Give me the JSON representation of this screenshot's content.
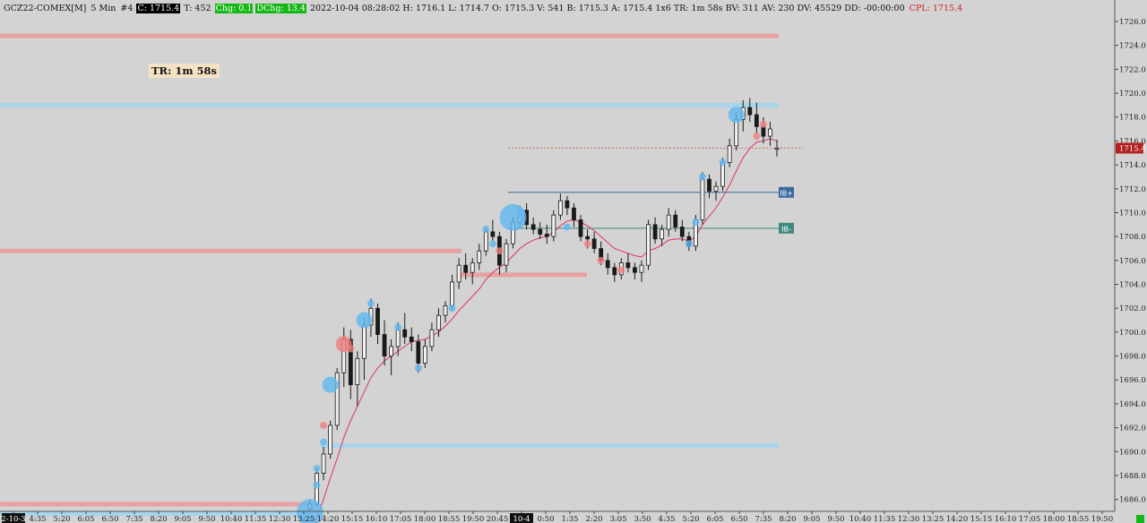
{
  "header": {
    "symbol": "GCZ22-COMEX[M]",
    "interval": "5 Min",
    "chart_number": "#4",
    "close": "C: 1715.4",
    "trades": "T: 452",
    "change": "Chg: 0.1",
    "dchange": "DChg: 13.4",
    "stats": "2022-10-04 08:28:02 H: 1716.1 L: 1714.7 O: 1715.3 V: 541 B: 1715.3 A: 1715.4 1x6 TR: 1m 58s BV: 311 AV: 230 DV: 45529 DD: -00:00:00",
    "cpl": "CPL: 1715.4"
  },
  "timer_box": "TR: 1m 58s",
  "chart_data": {
    "type": "candlestick",
    "y_axis": {
      "range": [
        1685.0,
        1727.8
      ],
      "ticks": [
        1686.0,
        1688.0,
        1690.0,
        1692.0,
        1694.0,
        1696.0,
        1698.0,
        1700.0,
        1702.0,
        1704.0,
        1706.0,
        1708.0,
        1710.0,
        1712.0,
        1714.0,
        1716.0,
        1718.0,
        1720.0,
        1722.0,
        1724.0,
        1726.0
      ],
      "tick_labels": [
        "1686.0",
        "1688.0",
        "1690.0",
        "1692.0",
        "1694.0",
        "1696.0",
        "1698.0",
        "1700.0",
        "1702.0",
        "1704.0",
        "1706.0",
        "1708.0",
        "1710.0",
        "1712.0",
        "1714.0",
        "1716.0",
        "1718.0",
        "1720.0",
        "1722.0",
        "1724.0",
        "1726.0"
      ],
      "current_price_label": "1715.4",
      "current_price_color": "#b52020"
    },
    "x_axis": {
      "labels": [
        "2-10-3",
        "4:35",
        "5:20",
        "6:05",
        "6:50",
        "7:35",
        "8:20",
        "9:05",
        "9:50",
        "10:40",
        "11:35",
        "12:30",
        "13:25",
        "14:20",
        "15:15",
        "16:10",
        "17:05",
        "18:00",
        "18:55",
        "19:50",
        "20:45",
        "10-4",
        "0:50",
        "1:35",
        "2:20",
        "3:05",
        "3:50",
        "4:35",
        "5:20",
        "6:05",
        "6:50",
        "7:35",
        "8:20",
        "9:05",
        "9:50",
        "10:40",
        "11:35",
        "12:30",
        "13:25",
        "14:20",
        "15:15",
        "16:10",
        "17:05",
        "18:00",
        "18:55",
        "19:50"
      ],
      "highlighted_labels": [
        "2-10-3",
        "10-4"
      ]
    },
    "candles": [
      {
        "o": 1685.2,
        "h": 1686.0,
        "l": 1685.0,
        "c": 1685.6
      },
      {
        "o": 1685.6,
        "h": 1688.6,
        "l": 1685.4,
        "c": 1688.2
      },
      {
        "o": 1688.2,
        "h": 1690.4,
        "l": 1687.6,
        "c": 1689.8
      },
      {
        "o": 1689.8,
        "h": 1692.6,
        "l": 1689.4,
        "c": 1692.2
      },
      {
        "o": 1692.2,
        "h": 1697.0,
        "l": 1691.8,
        "c": 1696.6
      },
      {
        "o": 1696.6,
        "h": 1700.4,
        "l": 1695.4,
        "c": 1699.4
      },
      {
        "o": 1699.4,
        "h": 1700.2,
        "l": 1694.4,
        "c": 1695.6
      },
      {
        "o": 1695.6,
        "h": 1698.4,
        "l": 1693.8,
        "c": 1697.8
      },
      {
        "o": 1697.8,
        "h": 1701.2,
        "l": 1696.0,
        "c": 1700.6
      },
      {
        "o": 1700.6,
        "h": 1702.8,
        "l": 1699.6,
        "c": 1702.0
      },
      {
        "o": 1702.0,
        "h": 1702.4,
        "l": 1699.0,
        "c": 1699.8
      },
      {
        "o": 1699.8,
        "h": 1701.0,
        "l": 1697.2,
        "c": 1698.0
      },
      {
        "o": 1698.0,
        "h": 1699.4,
        "l": 1696.4,
        "c": 1698.8
      },
      {
        "o": 1698.8,
        "h": 1700.8,
        "l": 1698.0,
        "c": 1700.2
      },
      {
        "o": 1700.2,
        "h": 1701.6,
        "l": 1699.0,
        "c": 1699.6
      },
      {
        "o": 1699.6,
        "h": 1700.4,
        "l": 1698.4,
        "c": 1699.2
      },
      {
        "o": 1699.2,
        "h": 1699.8,
        "l": 1696.6,
        "c": 1697.4
      },
      {
        "o": 1697.4,
        "h": 1699.4,
        "l": 1697.0,
        "c": 1698.8
      },
      {
        "o": 1698.8,
        "h": 1700.8,
        "l": 1698.4,
        "c": 1700.2
      },
      {
        "o": 1700.2,
        "h": 1702.0,
        "l": 1699.6,
        "c": 1701.4
      },
      {
        "o": 1701.4,
        "h": 1702.6,
        "l": 1700.8,
        "c": 1702.2
      },
      {
        "o": 1702.2,
        "h": 1704.8,
        "l": 1701.8,
        "c": 1704.2
      },
      {
        "o": 1704.2,
        "h": 1706.2,
        "l": 1703.6,
        "c": 1705.6
      },
      {
        "o": 1705.6,
        "h": 1706.6,
        "l": 1704.4,
        "c": 1705.0
      },
      {
        "o": 1705.0,
        "h": 1706.2,
        "l": 1704.0,
        "c": 1705.8
      },
      {
        "o": 1705.8,
        "h": 1707.4,
        "l": 1705.2,
        "c": 1706.8
      },
      {
        "o": 1706.8,
        "h": 1708.8,
        "l": 1706.4,
        "c": 1708.4
      },
      {
        "o": 1708.4,
        "h": 1709.4,
        "l": 1707.6,
        "c": 1708.0
      },
      {
        "o": 1708.0,
        "h": 1708.4,
        "l": 1704.8,
        "c": 1705.6
      },
      {
        "o": 1705.6,
        "h": 1707.8,
        "l": 1705.0,
        "c": 1707.4
      },
      {
        "o": 1707.4,
        "h": 1709.6,
        "l": 1707.0,
        "c": 1709.2
      },
      {
        "o": 1709.2,
        "h": 1710.6,
        "l": 1708.8,
        "c": 1710.2
      },
      {
        "o": 1710.2,
        "h": 1710.8,
        "l": 1708.6,
        "c": 1709.0
      },
      {
        "o": 1709.0,
        "h": 1709.6,
        "l": 1708.2,
        "c": 1708.6
      },
      {
        "o": 1708.6,
        "h": 1709.2,
        "l": 1707.8,
        "c": 1708.2
      },
      {
        "o": 1708.2,
        "h": 1709.0,
        "l": 1707.4,
        "c": 1708.0
      },
      {
        "o": 1708.0,
        "h": 1710.2,
        "l": 1707.6,
        "c": 1709.8
      },
      {
        "o": 1709.8,
        "h": 1711.6,
        "l": 1709.4,
        "c": 1711.0
      },
      {
        "o": 1711.0,
        "h": 1711.4,
        "l": 1709.8,
        "c": 1710.4
      },
      {
        "o": 1710.4,
        "h": 1710.8,
        "l": 1708.8,
        "c": 1709.4
      },
      {
        "o": 1709.4,
        "h": 1709.8,
        "l": 1707.6,
        "c": 1708.0
      },
      {
        "o": 1708.0,
        "h": 1708.6,
        "l": 1707.0,
        "c": 1707.8
      },
      {
        "o": 1707.8,
        "h": 1708.4,
        "l": 1706.6,
        "c": 1707.0
      },
      {
        "o": 1707.0,
        "h": 1707.6,
        "l": 1705.6,
        "c": 1706.0
      },
      {
        "o": 1706.0,
        "h": 1706.6,
        "l": 1704.8,
        "c": 1705.4
      },
      {
        "o": 1705.4,
        "h": 1705.8,
        "l": 1704.2,
        "c": 1704.8
      },
      {
        "o": 1704.8,
        "h": 1706.2,
        "l": 1704.4,
        "c": 1705.8
      },
      {
        "o": 1705.8,
        "h": 1706.6,
        "l": 1705.0,
        "c": 1705.4
      },
      {
        "o": 1705.4,
        "h": 1705.8,
        "l": 1704.4,
        "c": 1705.0
      },
      {
        "o": 1705.0,
        "h": 1706.0,
        "l": 1704.2,
        "c": 1705.6
      },
      {
        "o": 1705.6,
        "h": 1709.4,
        "l": 1705.2,
        "c": 1709.0
      },
      {
        "o": 1709.0,
        "h": 1709.6,
        "l": 1707.4,
        "c": 1707.8
      },
      {
        "o": 1707.8,
        "h": 1709.0,
        "l": 1707.2,
        "c": 1708.6
      },
      {
        "o": 1708.6,
        "h": 1710.4,
        "l": 1708.0,
        "c": 1709.8
      },
      {
        "o": 1709.8,
        "h": 1710.2,
        "l": 1708.4,
        "c": 1708.8
      },
      {
        "o": 1708.8,
        "h": 1709.4,
        "l": 1707.6,
        "c": 1708.0
      },
      {
        "o": 1708.0,
        "h": 1708.4,
        "l": 1706.8,
        "c": 1707.2
      },
      {
        "o": 1707.2,
        "h": 1709.8,
        "l": 1706.8,
        "c": 1709.4
      },
      {
        "o": 1709.4,
        "h": 1713.4,
        "l": 1709.0,
        "c": 1712.8
      },
      {
        "o": 1712.8,
        "h": 1713.2,
        "l": 1711.2,
        "c": 1711.8
      },
      {
        "o": 1711.8,
        "h": 1712.6,
        "l": 1711.0,
        "c": 1712.2
      },
      {
        "o": 1712.2,
        "h": 1714.6,
        "l": 1711.8,
        "c": 1714.2
      },
      {
        "o": 1714.2,
        "h": 1716.2,
        "l": 1713.8,
        "c": 1715.6
      },
      {
        "o": 1715.6,
        "h": 1718.4,
        "l": 1715.2,
        "c": 1717.8
      },
      {
        "o": 1717.8,
        "h": 1719.4,
        "l": 1716.8,
        "c": 1718.8
      },
      {
        "o": 1718.8,
        "h": 1719.6,
        "l": 1717.6,
        "c": 1718.2
      },
      {
        "o": 1718.2,
        "h": 1719.2,
        "l": 1716.6,
        "c": 1717.2
      },
      {
        "o": 1717.2,
        "h": 1718.0,
        "l": 1715.8,
        "c": 1716.4
      },
      {
        "o": 1716.4,
        "h": 1717.6,
        "l": 1715.6,
        "c": 1717.0
      },
      {
        "o": 1715.3,
        "h": 1716.1,
        "l": 1714.7,
        "c": 1715.4
      }
    ],
    "ema_line": {
      "color": "#e0306a",
      "values": [
        1683.0,
        1684.5,
        1686.0,
        1687.8,
        1689.4,
        1691.2,
        1692.6,
        1693.8,
        1695.0,
        1696.2,
        1697.0,
        1697.6,
        1698.0,
        1698.4,
        1698.8,
        1699.2,
        1699.3,
        1699.4,
        1699.7,
        1700.0,
        1700.5,
        1701.1,
        1701.8,
        1702.4,
        1703.0,
        1703.6,
        1704.4,
        1705.0,
        1705.4,
        1705.8,
        1706.4,
        1707.0,
        1707.4,
        1707.7,
        1707.9,
        1708.0,
        1708.4,
        1708.9,
        1709.3,
        1709.4,
        1709.2,
        1708.9,
        1708.5,
        1708.0,
        1707.5,
        1707.0,
        1706.8,
        1706.6,
        1706.4,
        1706.3,
        1706.8,
        1707.0,
        1707.3,
        1707.7,
        1707.8,
        1707.8,
        1707.6,
        1708.0,
        1709.0,
        1709.7,
        1710.4,
        1711.3,
        1712.3,
        1713.5,
        1714.6,
        1715.4,
        1715.9,
        1716.0,
        1716.2,
        1716.0
      ]
    },
    "horizontal_levels": [
      {
        "price": 1724.8,
        "color": "#e8a0a0",
        "span": "left"
      },
      {
        "price": 1719.0,
        "color": "#a8d4ec",
        "span": "left"
      },
      {
        "price": 1706.8,
        "color": "#e8a0a0",
        "span": "left-mid"
      },
      {
        "price": 1704.8,
        "color": "#e8a0a0",
        "span": "mid-short"
      },
      {
        "price": 1690.5,
        "color": "#a8d4ec",
        "span": "mid"
      },
      {
        "price": 1685.6,
        "color": "#e8a0a0",
        "span": "far-left"
      },
      {
        "price": 1684.8,
        "color": "#a8d4ec",
        "span": "far-left"
      }
    ],
    "ib_levels": [
      {
        "label": "IB+",
        "price": 1711.7,
        "color": "#3a6aa0"
      },
      {
        "label": "IB-",
        "price": 1708.7,
        "color": "#3f8a80"
      }
    ],
    "cpl_line": {
      "price": 1715.4,
      "color": "#c07060"
    },
    "bubbles": [
      {
        "candle": 0,
        "price": 1684.9,
        "size": 3,
        "color": "#60b8f0"
      },
      {
        "candle": 1,
        "price": 1688.6,
        "size": 1,
        "color": "#60b8f0"
      },
      {
        "candle": 1,
        "price": 1687.2,
        "size": 1,
        "color": "#60b8f0"
      },
      {
        "candle": 2,
        "price": 1690.8,
        "size": 1,
        "color": "#60b8f0"
      },
      {
        "candle": 2,
        "price": 1692.2,
        "size": 1,
        "color": "#f08080"
      },
      {
        "candle": 3,
        "price": 1695.6,
        "size": 2,
        "color": "#60b8f0"
      },
      {
        "candle": 5,
        "price": 1699.0,
        "size": 2,
        "color": "#f08080"
      },
      {
        "candle": 6,
        "price": 1698.6,
        "size": 1,
        "color": "#f08080"
      },
      {
        "candle": 8,
        "price": 1701.0,
        "size": 2,
        "color": "#60b8f0"
      },
      {
        "candle": 9,
        "price": 1702.4,
        "size": 1,
        "color": "#60b8f0"
      },
      {
        "candle": 13,
        "price": 1700.4,
        "size": 1,
        "color": "#60b8f0"
      },
      {
        "candle": 16,
        "price": 1697.0,
        "size": 1,
        "color": "#60b8f0"
      },
      {
        "candle": 21,
        "price": 1702.0,
        "size": 1,
        "color": "#60b8f0"
      },
      {
        "candle": 26,
        "price": 1708.6,
        "size": 1,
        "color": "#60b8f0"
      },
      {
        "candle": 27,
        "price": 1707.4,
        "size": 1,
        "color": "#60b8f0"
      },
      {
        "candle": 28,
        "price": 1706.8,
        "size": 1,
        "color": "#f08080"
      },
      {
        "candle": 30,
        "price": 1709.6,
        "size": 3,
        "color": "#60b8f0"
      },
      {
        "candle": 31,
        "price": 1710.0,
        "size": 1,
        "color": "#60b8f0"
      },
      {
        "candle": 38,
        "price": 1708.8,
        "size": 1,
        "color": "#60b8f0"
      },
      {
        "candle": 41,
        "price": 1707.4,
        "size": 1,
        "color": "#f08080"
      },
      {
        "candle": 43,
        "price": 1706.0,
        "size": 1,
        "color": "#f08080"
      },
      {
        "candle": 46,
        "price": 1705.2,
        "size": 1,
        "color": "#f08080"
      },
      {
        "candle": 56,
        "price": 1707.4,
        "size": 1,
        "color": "#60b8f0"
      },
      {
        "candle": 57,
        "price": 1709.2,
        "size": 1,
        "color": "#60b8f0"
      },
      {
        "candle": 58,
        "price": 1713.0,
        "size": 1,
        "color": "#60b8f0"
      },
      {
        "candle": 61,
        "price": 1714.2,
        "size": 1,
        "color": "#60b8f0"
      },
      {
        "candle": 63,
        "price": 1718.2,
        "size": 2,
        "color": "#60b8f0"
      },
      {
        "candle": 66,
        "price": 1716.4,
        "size": 1,
        "color": "#f08080"
      },
      {
        "candle": 67,
        "price": 1717.4,
        "size": 1,
        "color": "#f08080"
      }
    ]
  },
  "colors": {
    "background": "#d3d3d3",
    "candle": "#1a1a1a",
    "axis_text": "#222222",
    "bid_bubble": "#60b8f0",
    "ask_bubble": "#f08080"
  },
  "status_icon": "green-square-icon"
}
